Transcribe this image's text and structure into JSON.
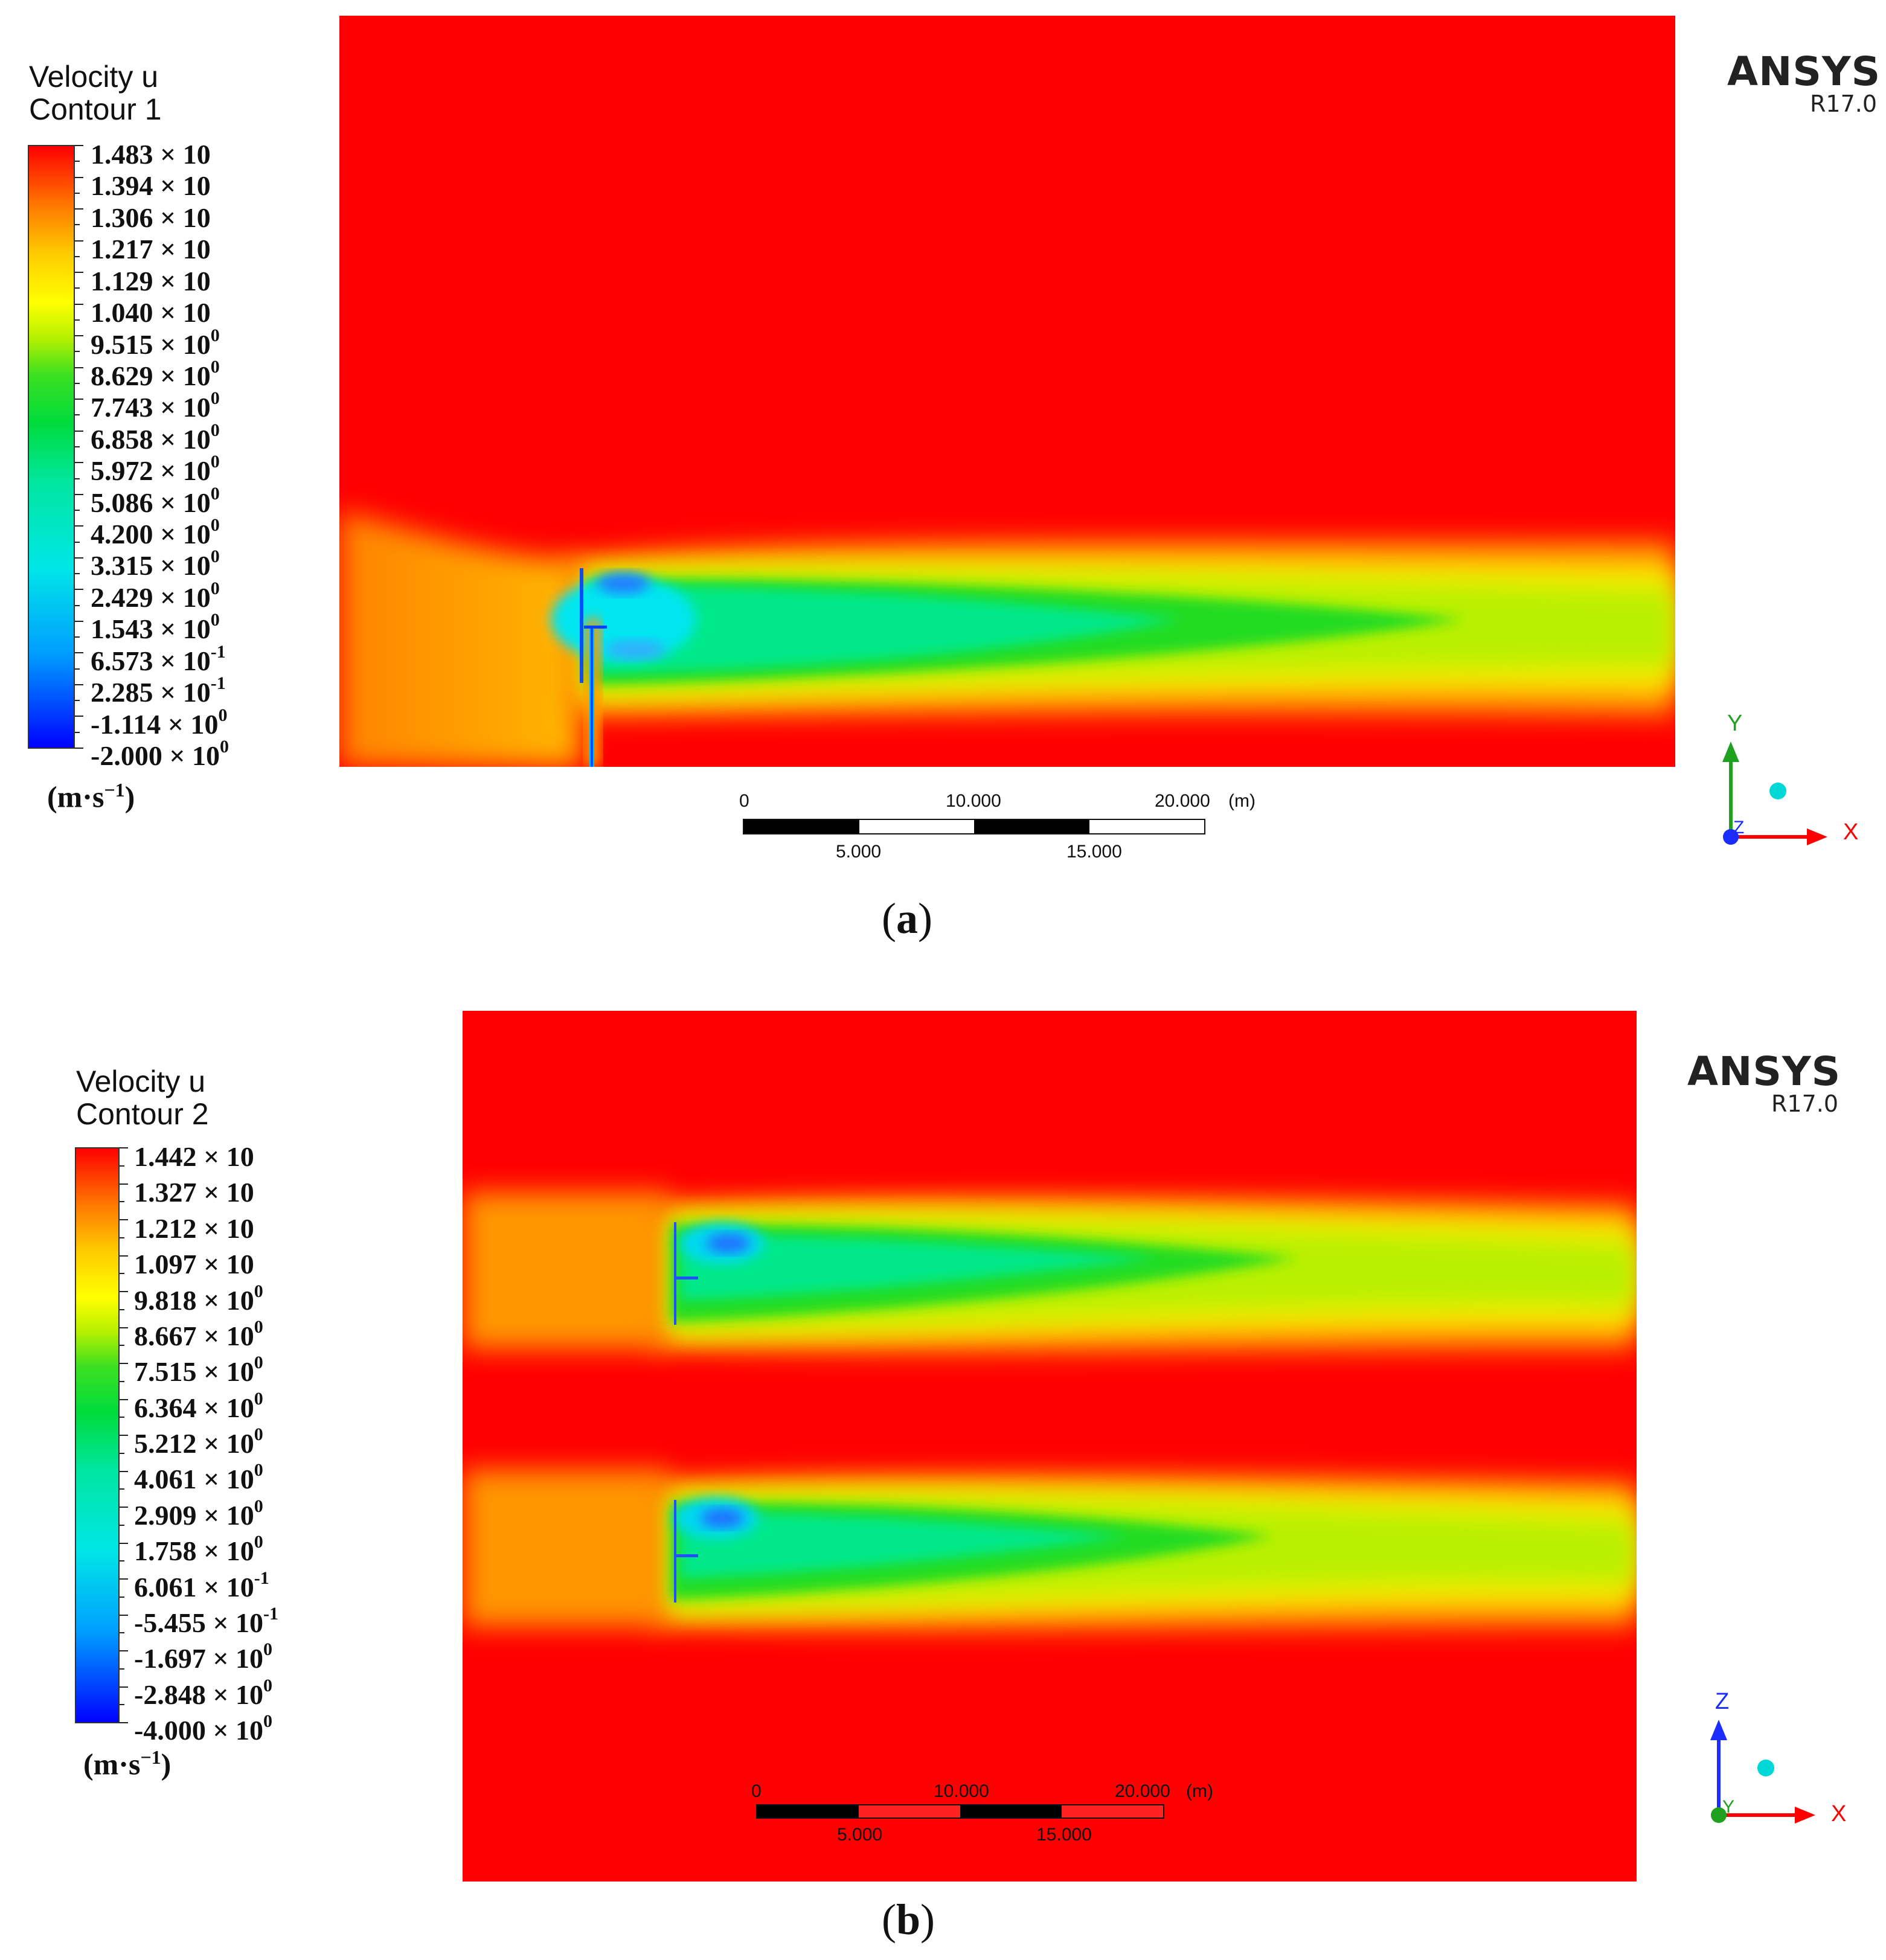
{
  "panels": [
    {
      "id": "a",
      "legend": {
        "title_line1": "Velocity u",
        "title_line2": "Contour 1",
        "labels": [
          {
            "mantissa": "1.483",
            "exp": ""
          },
          {
            "mantissa": "1.394",
            "exp": ""
          },
          {
            "mantissa": "1.306",
            "exp": ""
          },
          {
            "mantissa": "1.217",
            "exp": ""
          },
          {
            "mantissa": "1.129",
            "exp": ""
          },
          {
            "mantissa": "1.040",
            "exp": ""
          },
          {
            "mantissa": "9.515",
            "exp": "0"
          },
          {
            "mantissa": "8.629",
            "exp": "0"
          },
          {
            "mantissa": "7.743",
            "exp": "0"
          },
          {
            "mantissa": "6.858",
            "exp": "0"
          },
          {
            "mantissa": "5.972",
            "exp": "0"
          },
          {
            "mantissa": "5.086",
            "exp": "0"
          },
          {
            "mantissa": "4.200",
            "exp": "0"
          },
          {
            "mantissa": "3.315",
            "exp": "0"
          },
          {
            "mantissa": "2.429",
            "exp": "0"
          },
          {
            "mantissa": "1.543",
            "exp": "0"
          },
          {
            "mantissa": "6.573",
            "exp": "-1"
          },
          {
            "mantissa": "2.285",
            "exp": "-1"
          },
          {
            "mantissa": "-1.114",
            "exp": "0"
          },
          {
            "mantissa": "-2.000",
            "exp": "0"
          }
        ],
        "unit_base": "(m·s",
        "unit_exp": "−1",
        "unit_close": ")"
      },
      "brand": "ANSYS",
      "version": "R17.0",
      "scale": {
        "top_labels": [
          "0",
          "10.000",
          "20.000",
          "(m)"
        ],
        "bottom_labels": [
          "5.000",
          "15.000"
        ]
      },
      "axes": {
        "vertical": "Y",
        "horizontal": "X",
        "depth": "Z",
        "vertical_color": "#1fa01f"
      },
      "caption": "a"
    },
    {
      "id": "b",
      "legend": {
        "title_line1": "Velocity u",
        "title_line2": "Contour 2",
        "labels": [
          {
            "mantissa": "1.442",
            "exp": ""
          },
          {
            "mantissa": "1.327",
            "exp": ""
          },
          {
            "mantissa": "1.212",
            "exp": ""
          },
          {
            "mantissa": "1.097",
            "exp": ""
          },
          {
            "mantissa": "9.818",
            "exp": "0"
          },
          {
            "mantissa": "8.667",
            "exp": "0"
          },
          {
            "mantissa": "7.515",
            "exp": "0"
          },
          {
            "mantissa": "6.364",
            "exp": "0"
          },
          {
            "mantissa": "5.212",
            "exp": "0"
          },
          {
            "mantissa": "4.061",
            "exp": "0"
          },
          {
            "mantissa": "2.909",
            "exp": "0"
          },
          {
            "mantissa": "1.758",
            "exp": "0"
          },
          {
            "mantissa": "6.061",
            "exp": "-1"
          },
          {
            "mantissa": "-5.455",
            "exp": "-1"
          },
          {
            "mantissa": "-1.697",
            "exp": "0"
          },
          {
            "mantissa": "-2.848",
            "exp": "0"
          },
          {
            "mantissa": "-4.000",
            "exp": "0"
          }
        ],
        "unit_base": "(m·s",
        "unit_exp": "−1",
        "unit_close": ")"
      },
      "brand": "ANSYS",
      "version": "R17.0",
      "scale": {
        "top_labels": [
          "0",
          "10.000",
          "20.000",
          "(m)"
        ],
        "bottom_labels": [
          "5.000",
          "15.000"
        ]
      },
      "axes": {
        "vertical": "Z",
        "horizontal": "X",
        "depth": "Y",
        "vertical_color": "#1a2cff"
      },
      "caption": "b"
    }
  ],
  "colors": {
    "red": "#ff0000",
    "orange": "#ff8c00",
    "yellow": "#ffee00",
    "yellow_green": "#c8f000",
    "green": "#1edc1e",
    "cyan_green": "#00e88a",
    "cyan": "#00e6f0",
    "blue": "#0050ff",
    "dark_blue": "#0000ff"
  }
}
